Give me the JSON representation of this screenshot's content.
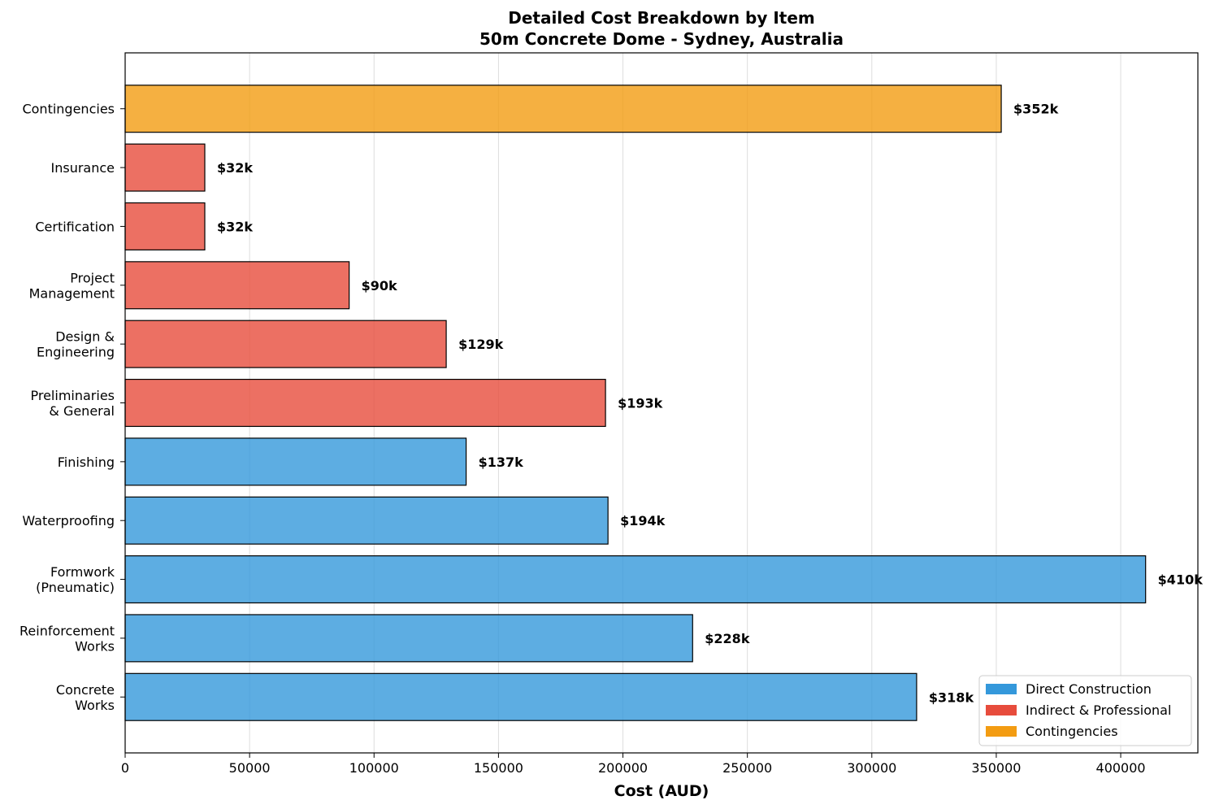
{
  "chart_data": {
    "type": "bar",
    "orientation": "horizontal",
    "title": "Detailed Cost Breakdown by Item",
    "subtitle": "50m Concrete Dome - Sydney, Australia",
    "xlabel": "Cost (AUD)",
    "ylabel": "",
    "xlim": [
      0,
      431000
    ],
    "xticks": [
      0,
      50000,
      100000,
      150000,
      200000,
      250000,
      300000,
      350000,
      400000
    ],
    "grid": "vertical",
    "legend_position": "bottom-right",
    "colors": {
      "Direct Construction": "#3498db",
      "Indirect & Professional": "#e74c3c",
      "Contingencies": "#f39c12"
    },
    "legend": [
      "Direct Construction",
      "Indirect & Professional",
      "Contingencies"
    ],
    "bars": [
      {
        "label": [
          "Concrete",
          "Works"
        ],
        "value": 318000,
        "category": "Direct Construction",
        "value_label": "$318k"
      },
      {
        "label": [
          "Reinforcement",
          "Works"
        ],
        "value": 228000,
        "category": "Direct Construction",
        "value_label": "$228k"
      },
      {
        "label": [
          "Formwork",
          "(Pneumatic)"
        ],
        "value": 410000,
        "category": "Direct Construction",
        "value_label": "$410k"
      },
      {
        "label": [
          "Waterproofing"
        ],
        "value": 194000,
        "category": "Direct Construction",
        "value_label": "$194k"
      },
      {
        "label": [
          "Finishing"
        ],
        "value": 137000,
        "category": "Direct Construction",
        "value_label": "$137k"
      },
      {
        "label": [
          "Preliminaries",
          "& General"
        ],
        "value": 193000,
        "category": "Indirect & Professional",
        "value_label": "$193k"
      },
      {
        "label": [
          "Design &",
          "Engineering"
        ],
        "value": 129000,
        "category": "Indirect & Professional",
        "value_label": "$129k"
      },
      {
        "label": [
          "Project",
          "Management"
        ],
        "value": 90000,
        "category": "Indirect & Professional",
        "value_label": "$90k"
      },
      {
        "label": [
          "Certification"
        ],
        "value": 32000,
        "category": "Indirect & Professional",
        "value_label": "$32k"
      },
      {
        "label": [
          "Insurance"
        ],
        "value": 32000,
        "category": "Indirect & Professional",
        "value_label": "$32k"
      },
      {
        "label": [
          "Contingencies"
        ],
        "value": 352000,
        "category": "Contingencies",
        "value_label": "$352k"
      }
    ]
  }
}
